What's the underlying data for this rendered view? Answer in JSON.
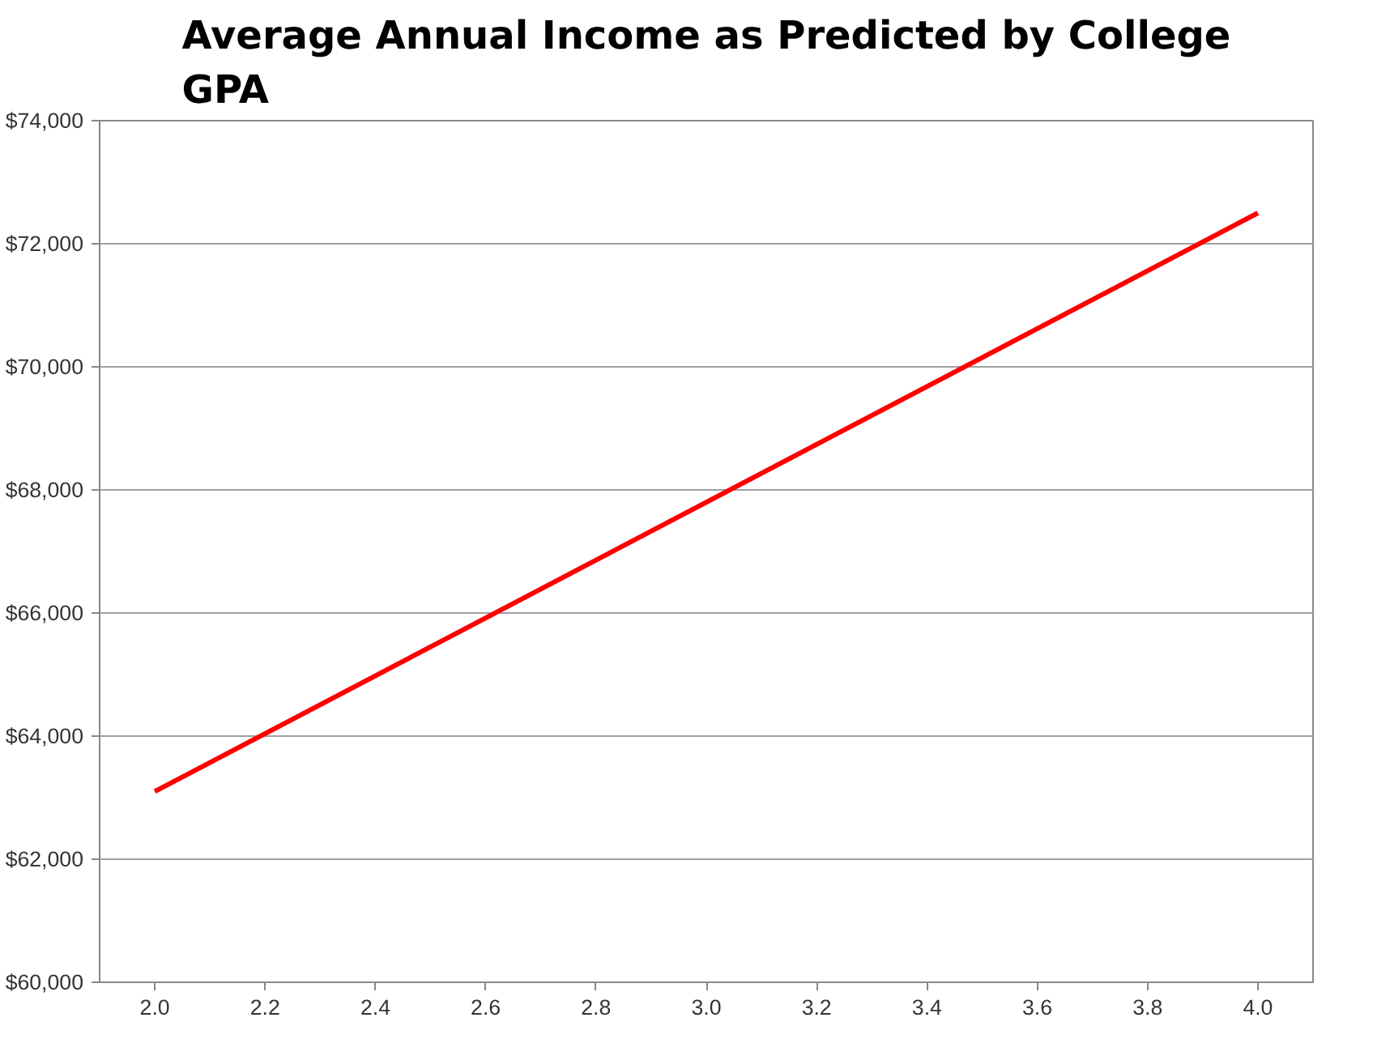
{
  "chart_data": {
    "type": "line",
    "title": "Average Annual Income as Predicted by College GPA",
    "x": [
      2.0,
      4.0
    ],
    "series": [
      {
        "color": "#ff0000",
        "values": [
          63100,
          72500
        ]
      }
    ],
    "xlim": [
      1.9,
      4.1
    ],
    "xticks": [
      {
        "value": 2.0,
        "label": "2.0"
      },
      {
        "value": 2.2,
        "label": "2.2"
      },
      {
        "value": 2.4,
        "label": "2.4"
      },
      {
        "value": 2.6,
        "label": "2.6"
      },
      {
        "value": 2.8,
        "label": "2.8"
      },
      {
        "value": 3.0,
        "label": "3.0"
      },
      {
        "value": 3.2,
        "label": "3.2"
      },
      {
        "value": 3.4,
        "label": "3.4"
      },
      {
        "value": 3.6,
        "label": "3.6"
      },
      {
        "value": 3.8,
        "label": "3.8"
      },
      {
        "value": 4.0,
        "label": "4.0"
      }
    ],
    "ylim": [
      60000,
      74000
    ],
    "yticks": [
      {
        "value": 60000,
        "label": "$60,000"
      },
      {
        "value": 62000,
        "label": "$62,000"
      },
      {
        "value": 64000,
        "label": "$64,000"
      },
      {
        "value": 66000,
        "label": "$66,000"
      },
      {
        "value": 68000,
        "label": "$68,000"
      },
      {
        "value": 70000,
        "label": "$70,000"
      },
      {
        "value": 72000,
        "label": "$72,000"
      },
      {
        "value": 74000,
        "label": "$74,000"
      }
    ],
    "grid": "y",
    "marker": "none",
    "line_style": "solid"
  }
}
